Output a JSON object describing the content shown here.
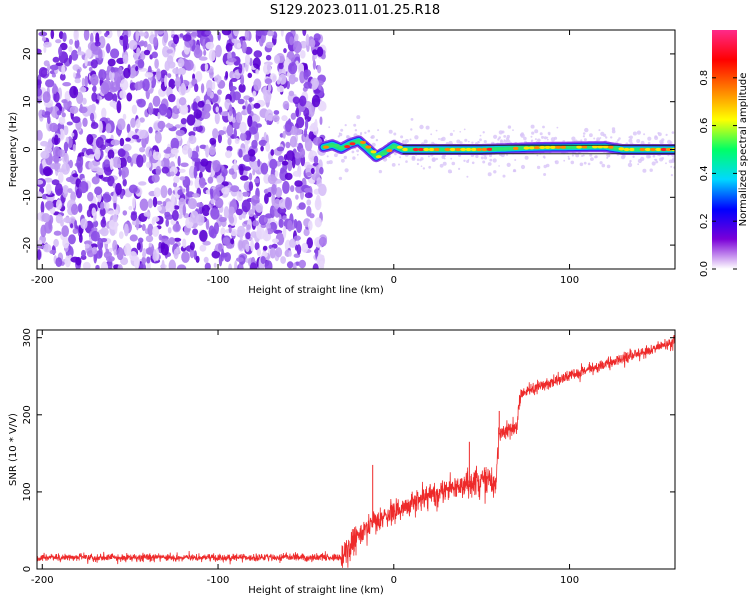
{
  "title": "S129.2023.011.01.25.R18",
  "chart_data": [
    {
      "type": "heatmap",
      "xlabel": "Height of straight line (km)",
      "ylabel": "Frequency (Hz)",
      "xlim": [
        -203,
        160
      ],
      "ylim": [
        -25,
        25
      ],
      "xticks": [
        -200,
        -100,
        0,
        100
      ],
      "xtick_labels": [
        "-200",
        "-100",
        "0",
        "100"
      ],
      "yticks": [
        -20,
        -10,
        0,
        10,
        20
      ],
      "ytick_labels": [
        "-20",
        "-10",
        "0",
        "10",
        "20"
      ],
      "noise_region_x": [
        -203,
        -40
      ],
      "signal_start_x": -40,
      "line_y": [
        {
          "x": -40,
          "y": 0.5
        },
        {
          "x": -35,
          "y": 1.0
        },
        {
          "x": -30,
          "y": 0.2
        },
        {
          "x": -25,
          "y": 1.2
        },
        {
          "x": -20,
          "y": 1.8
        },
        {
          "x": -15,
          "y": 0.2
        },
        {
          "x": -10,
          "y": -1.5
        },
        {
          "x": -5,
          "y": -0.5
        },
        {
          "x": 0,
          "y": 0.8
        },
        {
          "x": 5,
          "y": 0.0
        },
        {
          "x": 50,
          "y": 0.0
        },
        {
          "x": 80,
          "y": 0.4
        },
        {
          "x": 120,
          "y": 0.6
        },
        {
          "x": 130,
          "y": 0.0
        },
        {
          "x": 160,
          "y": 0.0
        }
      ],
      "colorbar": {
        "label": "Normalized spectral amplitude",
        "range": [
          0,
          1
        ],
        "ticks": [
          0.0,
          0.2,
          0.4,
          0.6,
          0.8
        ],
        "tick_labels": [
          "0.0",
          "0.2",
          "0.4",
          "0.6",
          "0.8"
        ],
        "colors": [
          "#ffffff",
          "#7a00d8",
          "#0000ff",
          "#00d8ff",
          "#00ff66",
          "#ffff00",
          "#ff8000",
          "#ff0000",
          "#ff2a8a"
        ]
      }
    },
    {
      "type": "line",
      "xlabel": "Height of straight line (km)",
      "ylabel": "SNR (10 * V/V)",
      "xlim": [
        -203,
        160
      ],
      "ylim": [
        0,
        310
      ],
      "xticks": [
        -200,
        -100,
        0,
        100
      ],
      "xtick_labels": [
        "-200",
        "-100",
        "0",
        "100"
      ],
      "yticks": [
        0,
        100,
        200,
        300
      ],
      "ytick_labels": [
        "0",
        "100",
        "200",
        "300"
      ],
      "color": "#ee2a2a",
      "x": [
        -203,
        -150,
        -100,
        -60,
        -30,
        -20,
        0,
        20,
        40,
        50,
        58,
        60,
        65,
        70,
        72,
        80,
        100,
        120,
        140,
        160
      ],
      "values": [
        15,
        15,
        15,
        15,
        15,
        45,
        75,
        95,
        110,
        115,
        110,
        175,
        180,
        185,
        225,
        235,
        250,
        265,
        280,
        295
      ],
      "spikes": [
        {
          "x": -12,
          "y": 135
        },
        {
          "x": 43,
          "y": 165
        },
        {
          "x": 60,
          "y": 205
        }
      ]
    }
  ]
}
